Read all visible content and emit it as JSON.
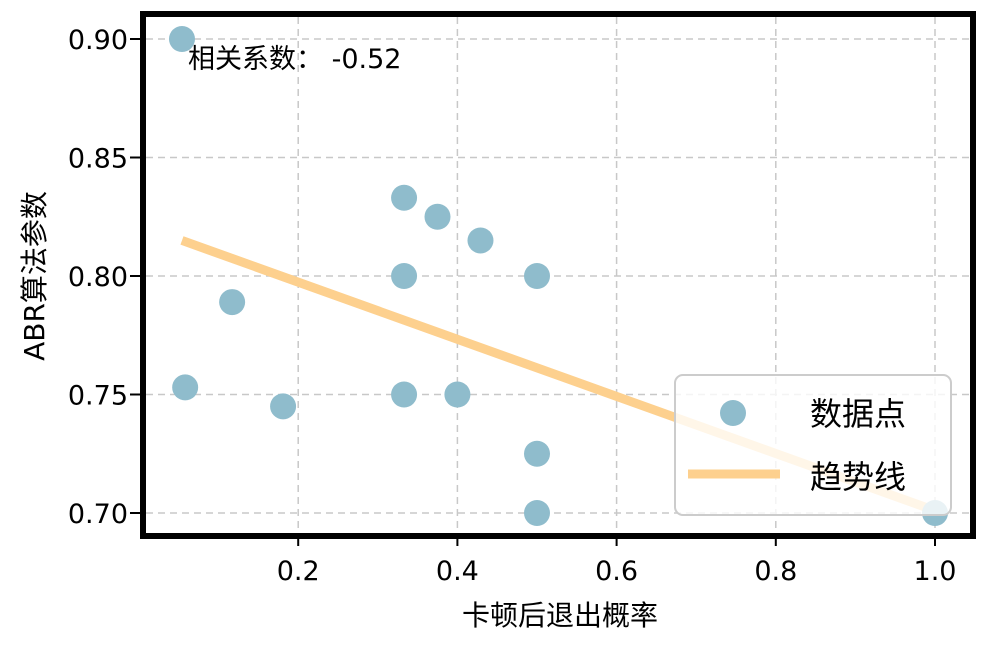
{
  "chart_data": {
    "type": "scatter",
    "title": "",
    "xlabel": "卡顿后退出概率",
    "ylabel": "ABR算法参数",
    "xlim": [
      0.01,
      1.05
    ],
    "ylim": [
      0.69,
      0.91
    ],
    "x_ticks": [
      0.2,
      0.4,
      0.6,
      0.8,
      1.0
    ],
    "x_tick_labels": [
      "0.2",
      "0.4",
      "0.6",
      "0.8",
      "1.0"
    ],
    "y_ticks": [
      0.7,
      0.75,
      0.8,
      0.85,
      0.9
    ],
    "y_tick_labels": [
      "0.70",
      "0.75",
      "0.80",
      "0.85",
      "0.90"
    ],
    "grid": true,
    "grid_style": "dashed",
    "legend_position": "lower right",
    "annotation": "相关系数： -0.52",
    "series": [
      {
        "name": "数据点",
        "kind": "scatter",
        "color": "#8fbccc",
        "x": [
          0.054,
          0.117,
          0.058,
          0.181,
          0.333,
          0.375,
          0.429,
          0.333,
          0.5,
          0.333,
          0.4,
          0.5,
          0.5,
          1.0
        ],
        "y": [
          0.9,
          0.789,
          0.753,
          0.745,
          0.833,
          0.825,
          0.815,
          0.8,
          0.8,
          0.75,
          0.75,
          0.725,
          0.7,
          0.7
        ]
      },
      {
        "name": "趋势线",
        "kind": "line",
        "color": "#fdd08e",
        "x": [
          0.054,
          1.0
        ],
        "y": [
          0.815,
          0.701
        ]
      }
    ]
  },
  "legend": {
    "items": [
      {
        "label": "数据点",
        "marker": "circle",
        "color": "#8fbccc"
      },
      {
        "label": "趋势线",
        "marker": "line",
        "color": "#fdd08e"
      }
    ]
  },
  "annotation": {
    "text": "相关系数： -0.52"
  },
  "axes": {
    "xlabel": "卡顿后退出概率",
    "ylabel": "ABR算法参数"
  }
}
